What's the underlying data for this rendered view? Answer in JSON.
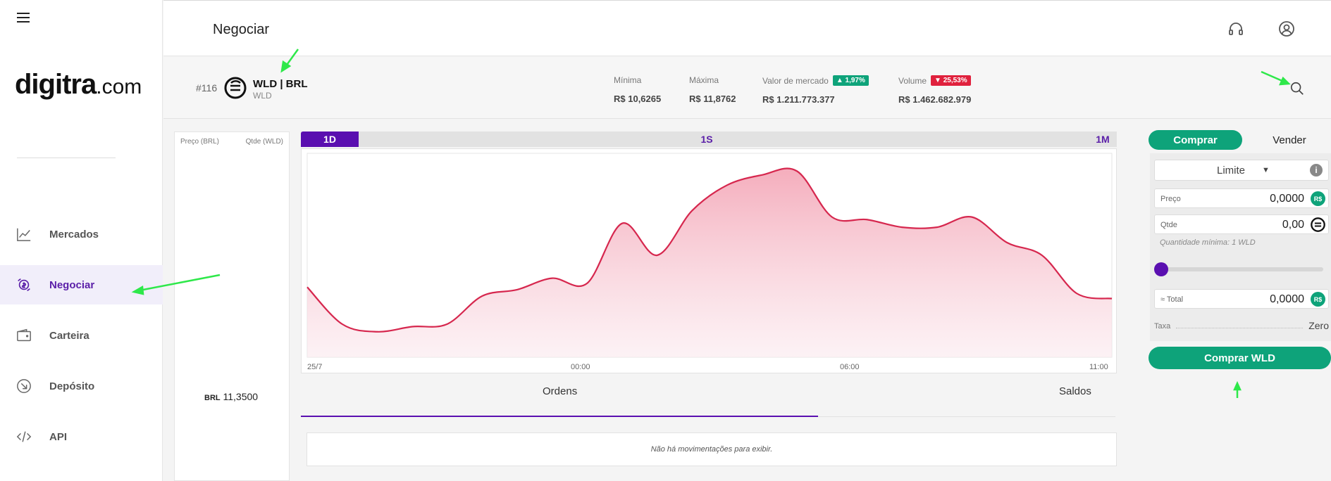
{
  "sidebar": {
    "logo_main": "digitra",
    "logo_domain": ".com",
    "items": [
      {
        "label": "Mercados",
        "icon": "chart-line-icon"
      },
      {
        "label": "Negociar",
        "icon": "trade-exchange-icon"
      },
      {
        "label": "Carteira",
        "icon": "wallet-icon"
      },
      {
        "label": "Depósito",
        "icon": "deposit-arrow-icon"
      },
      {
        "label": "API",
        "icon": "code-icon"
      }
    ]
  },
  "header": {
    "title": "Negociar"
  },
  "market": {
    "rank": "#116",
    "pair": "WLD | BRL",
    "symbol": "WLD",
    "stats": [
      {
        "label": "Mínima",
        "value": "R$ 10,6265"
      },
      {
        "label": "Máxima",
        "value": "R$ 11,8762"
      },
      {
        "label": "Valor de mercado",
        "value": "R$ 1.211.773.377",
        "change": "1,97%",
        "direction": "up"
      },
      {
        "label": "Volume",
        "value": "R$ 1.462.682.979",
        "change": "25,53%",
        "direction": "down"
      }
    ]
  },
  "orderbook": {
    "price_header": "Preço (BRL)",
    "qty_header": "Qtde (WLD)",
    "last_currency": "BRL",
    "last_price": "11,3500"
  },
  "chart": {
    "timeframes": [
      "1D",
      "1S",
      "1M"
    ],
    "active_timeframe": "1D",
    "x_labels": [
      "25/7",
      "00:00",
      "06:00",
      "11:00"
    ],
    "line_color": "#d6274e",
    "fill_color": "#f4b9c6"
  },
  "chart_data": {
    "type": "area",
    "title": "",
    "xlabel": "",
    "ylabel": "",
    "series": [
      {
        "name": "WLD/BRL",
        "values": [
          10.95,
          10.66,
          10.6,
          10.64,
          10.66,
          10.88,
          10.93,
          11.02,
          10.98,
          11.45,
          11.2,
          11.55,
          11.75,
          11.83,
          11.86,
          11.5,
          11.48,
          11.42,
          11.42,
          11.5,
          11.3,
          11.2,
          10.9,
          10.86
        ]
      }
    ],
    "ylim": [
      10.4,
      12.0
    ]
  },
  "tabs": {
    "orders": "Ordens",
    "balances": "Saldos",
    "empty_message": "Não há movimentações para exibir."
  },
  "trade": {
    "buy_tab": "Comprar",
    "sell_tab": "Vender",
    "order_type": "Limite",
    "price_label": "Preço",
    "price_value": "0,0000",
    "price_currency": "R$",
    "qty_label": "Qtde",
    "qty_value": "0,00",
    "min_qty": "Quantidade mínima: 1 WLD",
    "total_label": "≈ Total",
    "total_value": "0,0000",
    "total_currency": "R$",
    "fee_label": "Taxa",
    "fee_value": "Zero",
    "submit": "Comprar WLD",
    "slider_fraction": 0
  },
  "colors": {
    "accent_purple": "#5a0fb0",
    "green": "#0ea37a",
    "red": "#e0213d"
  }
}
